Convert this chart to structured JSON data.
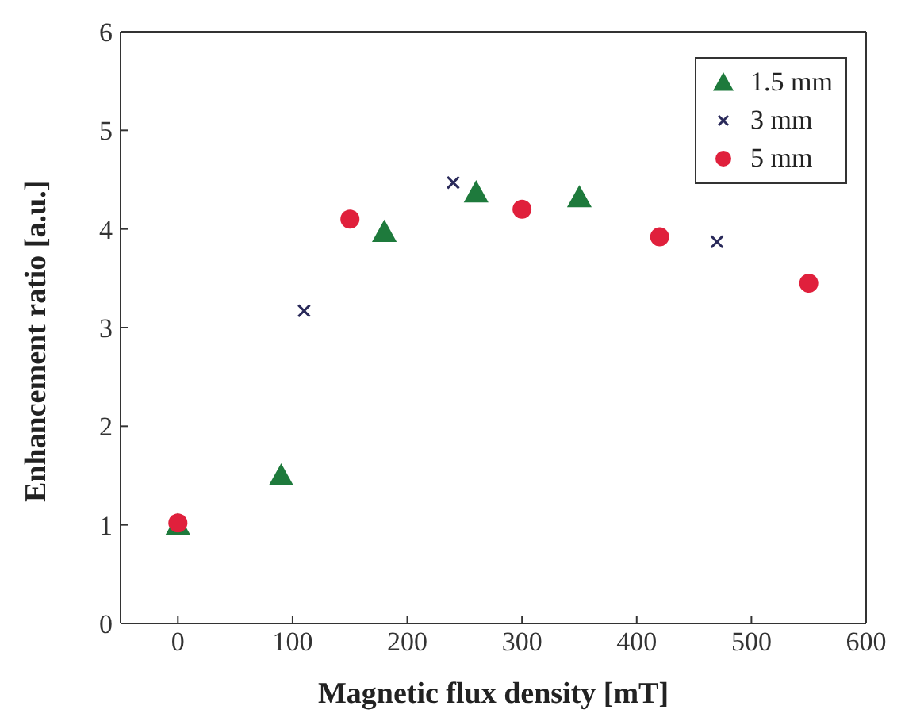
{
  "chart_data": {
    "type": "scatter",
    "xlabel": "Magnetic flux density [mT]",
    "ylabel": "Enhancement ratio [a.u.]",
    "xlim": [
      -50,
      600
    ],
    "xticks": [
      0,
      100,
      200,
      300,
      400,
      500,
      600
    ],
    "ylim": [
      0,
      6
    ],
    "yticks": [
      0,
      1,
      2,
      3,
      4,
      5,
      6
    ],
    "grid": false,
    "legend": "top right",
    "series": [
      {
        "name": "1.5 mm",
        "color": "#1e7a3c",
        "marker": "triangle",
        "x": [
          0,
          90,
          180,
          260,
          350
        ],
        "values": [
          1.0,
          1.5,
          3.97,
          4.37,
          4.32
        ]
      },
      {
        "name": "3 mm",
        "color": "#2a2a5a",
        "marker": "cross",
        "x": [
          110,
          240,
          470
        ],
        "values": [
          3.17,
          4.47,
          3.87
        ]
      },
      {
        "name": "5 mm",
        "color": "#e0203c",
        "marker": "circle",
        "x": [
          0,
          150,
          300,
          420,
          550
        ],
        "values": [
          1.02,
          4.1,
          4.2,
          3.92,
          3.45
        ]
      }
    ]
  }
}
